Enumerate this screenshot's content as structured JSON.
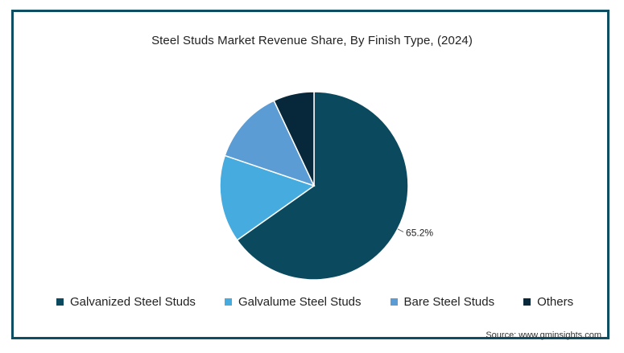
{
  "chart_data": {
    "type": "pie",
    "title": "Steel Studs Market Revenue Share, By Finish Type,  (2024)",
    "categories": [
      "Galvanized Steel Studs",
      "Galvalume Steel Studs",
      "Bare Steel Studs",
      "Others"
    ],
    "values": [
      65.2,
      15.0,
      12.8,
      7.0
    ],
    "data_labels": [
      "65.2%",
      "",
      "",
      ""
    ],
    "colors": [
      "#0b4a5e",
      "#46ace0",
      "#5c9cd4",
      "#07283a"
    ],
    "legend_position": "bottom",
    "source": "Source: www.gminsights.com"
  }
}
